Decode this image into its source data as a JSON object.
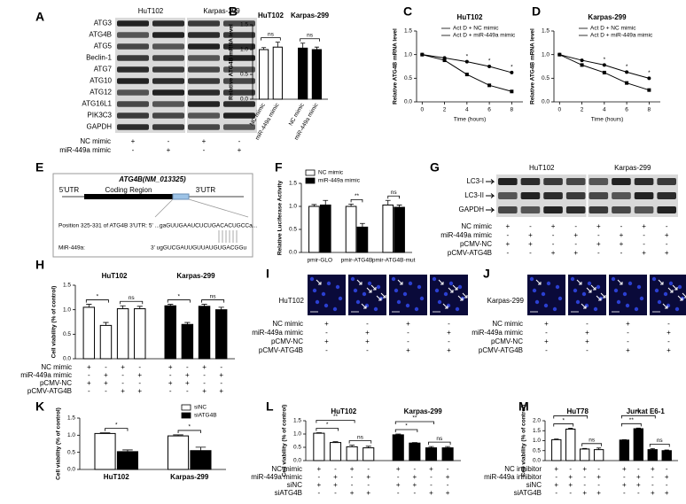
{
  "panel_labels": [
    "A",
    "B",
    "C",
    "D",
    "E",
    "F",
    "G",
    "H",
    "I",
    "J",
    "K",
    "L",
    "M"
  ],
  "blots": [
    {
      "cell_lines": [
        "HuT102",
        "Karpas-299"
      ],
      "proteins": [
        "ATG3",
        "ATG4B",
        "ATG5",
        "Beclin-1",
        "ATG7",
        "ATG10",
        "ATG12",
        "ATG16L1",
        "PIK3C3",
        "GAPDH"
      ],
      "conditions": [
        {
          "label": "NC mimic",
          "signs": [
            "+",
            "-",
            "+",
            "-"
          ]
        },
        {
          "label": "miR-449a mimic",
          "signs": [
            "-",
            "+",
            "-",
            "+"
          ]
        }
      ]
    },
    {
      "cell_lines": [
        "HuT102",
        "Karpas-299"
      ],
      "proteins": [
        "LC3-I",
        "LC3-II",
        "GAPDH"
      ],
      "conditions": [
        {
          "label": "NC mimic",
          "signs": [
            "+",
            "-",
            "+",
            "-",
            "+",
            "-",
            "+",
            "-"
          ]
        },
        {
          "label": "miR-449a mimic",
          "signs": [
            "-",
            "+",
            "-",
            "+",
            "-",
            "+",
            "-",
            "+"
          ]
        },
        {
          "label": "pCMV-NC",
          "signs": [
            "+",
            "+",
            "-",
            "-",
            "+",
            "+",
            "-",
            "-"
          ]
        },
        {
          "label": "pCMV-ATG4B",
          "signs": [
            "-",
            "-",
            "+",
            "+",
            "-",
            "-",
            "+",
            "+"
          ]
        }
      ]
    }
  ],
  "diagram": {
    "title": "ATG4B(NM_013325)",
    "regions": [
      "5'UTR",
      "Coding Region",
      "3'UTR"
    ],
    "site": "Position 325-331 of ATG4B 3'UTR: 5' ...gaGUUGAAUCUCUGACACUGCCa...",
    "mirna_label": "MiR-449a:",
    "mirna": "3'  ugGUCGAUUGUUAUGUGACGGu"
  },
  "images": [
    {
      "cell_line": "HuT102",
      "conditions": [
        {
          "label": "NC mimic",
          "signs": [
            "+",
            "-",
            "+",
            "-"
          ]
        },
        {
          "label": "miR-449a mimic",
          "signs": [
            "-",
            "+",
            "-",
            "+"
          ]
        },
        {
          "label": "pCMV-NC",
          "signs": [
            "+",
            "+",
            "-",
            "-"
          ]
        },
        {
          "label": "pCMV-ATG4B",
          "signs": [
            "-",
            "-",
            "+",
            "+"
          ]
        }
      ]
    },
    {
      "cell_line": "Karpas-299",
      "conditions": [
        {
          "label": "NC mimic",
          "signs": [
            "+",
            "-",
            "+",
            "-"
          ]
        },
        {
          "label": "miR-449a mimic",
          "signs": [
            "-",
            "+",
            "-",
            "+"
          ]
        },
        {
          "label": "pCMV-NC",
          "signs": [
            "+",
            "+",
            "-",
            "-"
          ]
        },
        {
          "label": "pCMV-ATG4B",
          "signs": [
            "-",
            "-",
            "+",
            "+"
          ]
        }
      ]
    }
  ],
  "chart_data": [
    {
      "type": "bar",
      "ylabel": "Relative ATG4B mRNA level",
      "ylim": [
        0,
        1.5
      ],
      "yticks": [
        {
          "value": 0,
          "label": "0.0"
        },
        {
          "value": 0.5,
          "label": "0.5"
        },
        {
          "value": 1,
          "label": "1.0"
        },
        {
          "value": 1.5,
          "label": "1.5"
        }
      ],
      "categories": [
        "NC mimic",
        "miR-449a mimic"
      ],
      "series": [
        {
          "name": "HuT102",
          "color": "#ffffff",
          "values": [
            1.0,
            1.05
          ],
          "errors": [
            0.04,
            0.1
          ],
          "significance": [
            "ns"
          ]
        },
        {
          "name": "Karpas-299",
          "color": "#000000",
          "values": [
            1.03,
            1.0
          ],
          "errors": [
            0.1,
            0.05
          ],
          "significance": [
            "ns"
          ]
        }
      ]
    },
    {
      "type": "line",
      "title": "HuT102",
      "ylabel": "Relative ATG4B mRNA level",
      "xlabel": "Time (hours)",
      "x": [
        0,
        2,
        4,
        6,
        8
      ],
      "xlim": [
        -0.5,
        9
      ],
      "xticks": [
        0,
        2,
        4,
        6,
        8
      ],
      "ylim": [
        0,
        1.5
      ],
      "yticks": [
        {
          "value": 0,
          "label": "0.0"
        },
        {
          "value": 0.5,
          "label": "0.5"
        },
        {
          "value": 1,
          "label": "1.0"
        },
        {
          "value": 1.5,
          "label": "1.5"
        }
      ],
      "legend": "upper right",
      "series": [
        {
          "name": "Act D + NC mimic",
          "color": "#000000",
          "values": [
            1.0,
            0.93,
            0.85,
            0.75,
            0.62
          ]
        },
        {
          "name": "Act D + miR-449a mimic",
          "color": "#000000",
          "values": [
            1.0,
            0.88,
            0.58,
            0.35,
            0.22
          ]
        }
      ],
      "significance": [
        null,
        null,
        "*",
        "*",
        "*"
      ]
    },
    {
      "type": "line",
      "title": "Karpas-299",
      "ylabel": "Relative ATG4B mRNA level",
      "xlabel": "Time (hours)",
      "x": [
        0,
        2,
        4,
        6,
        8
      ],
      "xlim": [
        -0.5,
        9
      ],
      "xticks": [
        0,
        2,
        4,
        6,
        8
      ],
      "ylim": [
        0,
        1.5
      ],
      "yticks": [
        {
          "value": 0,
          "label": "0.0"
        },
        {
          "value": 0.5,
          "label": "0.5"
        },
        {
          "value": 1,
          "label": "1.0"
        },
        {
          "value": 1.5,
          "label": "1.5"
        }
      ],
      "legend": "upper right",
      "series": [
        {
          "name": "Act D + NC mimic",
          "color": "#000000",
          "values": [
            1.0,
            0.88,
            0.78,
            0.63,
            0.5
          ]
        },
        {
          "name": "Act D + miR-449a mimic",
          "color": "#000000",
          "values": [
            1.0,
            0.78,
            0.62,
            0.4,
            0.25
          ]
        }
      ],
      "significance": [
        null,
        null,
        "*",
        "*",
        "*"
      ]
    },
    {
      "type": "bar",
      "ylabel": "Relative Luciferase Activity",
      "ylim": [
        0,
        1.5
      ],
      "yticks": [
        {
          "value": 0,
          "label": "0.0"
        },
        {
          "value": 0.5,
          "label": "0.5"
        },
        {
          "value": 1,
          "label": "1.0"
        },
        {
          "value": 1.5,
          "label": "1.5"
        }
      ],
      "legend": "upper left",
      "categories": [
        "pmir-GLO",
        "pmir-ATG4B",
        "pmir-ATG4B-mut"
      ],
      "series": [
        {
          "name": "NC mimic",
          "color": "#ffffff",
          "values": [
            1.0,
            1.0,
            1.03
          ],
          "errors": [
            0.04,
            0.05,
            0.1
          ]
        },
        {
          "name": "miR-449a mimic",
          "color": "#000000",
          "values": [
            1.03,
            0.55,
            0.98
          ],
          "errors": [
            0.1,
            0.08,
            0.05
          ]
        }
      ],
      "significance": [
        null,
        "**",
        "ns"
      ]
    },
    {
      "type": "bar",
      "ylabel": "Cell viability (% of control)",
      "ylim": [
        0,
        1.5
      ],
      "yticks": [
        {
          "value": 0,
          "label": "0.0"
        },
        {
          "value": 0.5,
          "label": "0.5"
        },
        {
          "value": 1,
          "label": "1.0"
        },
        {
          "value": 1.5,
          "label": "1.5"
        }
      ],
      "series": [
        {
          "name": "HuT102",
          "color": "#ffffff",
          "values": [
            1.05,
            0.68,
            1.02,
            1.02
          ],
          "errors": [
            0.06,
            0.06,
            0.06,
            0.05
          ],
          "significance": [
            "*",
            "ns"
          ]
        },
        {
          "name": "Karpas-299",
          "color": "#000000",
          "values": [
            1.08,
            0.7,
            1.07,
            1.0
          ],
          "errors": [
            0.03,
            0.04,
            0.04,
            0.05
          ],
          "significance": [
            "*",
            "ns"
          ]
        }
      ],
      "conditions": [
        {
          "label": "NC mimic",
          "signs": [
            "+",
            "-",
            "+",
            "-",
            "+",
            "-",
            "+",
            "-"
          ]
        },
        {
          "label": "miR-449a mimic",
          "signs": [
            "-",
            "+",
            "-",
            "+",
            "-",
            "+",
            "-",
            "+"
          ]
        },
        {
          "label": "pCMV-NC",
          "signs": [
            "+",
            "+",
            "-",
            "-",
            "+",
            "+",
            "-",
            "-"
          ]
        },
        {
          "label": "pCMV-ATG4B",
          "signs": [
            "-",
            "-",
            "+",
            "+",
            "-",
            "-",
            "+",
            "+"
          ]
        }
      ]
    },
    {
      "type": "bar",
      "ylabel": "Cell viability (% of control)",
      "ylim": [
        0,
        1.5
      ],
      "yticks": [
        {
          "value": 0,
          "label": "0.0"
        },
        {
          "value": 0.5,
          "label": "0.5"
        },
        {
          "value": 1,
          "label": "1.0"
        },
        {
          "value": 1.5,
          "label": "1.5"
        }
      ],
      "legend": "upper right",
      "categories": [
        "HuT102",
        "Karpas-299"
      ],
      "series": [
        {
          "name": "siNC",
          "color": "#ffffff",
          "values": [
            1.05,
            0.98
          ],
          "errors": [
            0.02,
            0.03
          ]
        },
        {
          "name": "siATG4B",
          "color": "#000000",
          "values": [
            0.52,
            0.55
          ],
          "errors": [
            0.05,
            0.1
          ]
        }
      ],
      "significance": [
        "*",
        "*"
      ]
    },
    {
      "type": "bar",
      "ylabel": "Cell viability (% of control)",
      "ylim": [
        0,
        1.5
      ],
      "yticks": [
        {
          "value": 0,
          "label": "0.0"
        },
        {
          "value": 0.5,
          "label": "0.5"
        },
        {
          "value": 1,
          "label": "1.0"
        },
        {
          "value": 1.5,
          "label": "1.5"
        }
      ],
      "series": [
        {
          "name": "HuT102",
          "color": "#ffffff",
          "values": [
            1.03,
            0.68,
            0.52,
            0.48
          ],
          "errors": [
            0.02,
            0.03,
            0.06,
            0.06
          ],
          "significance": [
            "*",
            "**",
            "ns"
          ]
        },
        {
          "name": "Karpas-299",
          "color": "#000000",
          "values": [
            0.97,
            0.66,
            0.48,
            0.48
          ],
          "errors": [
            0.03,
            0.02,
            0.05,
            0.05
          ],
          "significance": [
            "*",
            "**",
            "ns"
          ]
        }
      ],
      "conditions": [
        {
          "label": "NC mimic",
          "signs": [
            "+",
            "-",
            "+",
            "-",
            "+",
            "-",
            "+",
            "-"
          ]
        },
        {
          "label": "miR-449a mimic",
          "signs": [
            "-",
            "+",
            "-",
            "+",
            "-",
            "+",
            "-",
            "+"
          ]
        },
        {
          "label": "siNC",
          "signs": [
            "+",
            "+",
            "-",
            "-",
            "+",
            "+",
            "-",
            "-"
          ]
        },
        {
          "label": "siATG4B",
          "signs": [
            "-",
            "-",
            "+",
            "+",
            "-",
            "-",
            "+",
            "+"
          ]
        }
      ]
    },
    {
      "type": "bar",
      "ylabel": "Cell viability (% of control)",
      "ylim": [
        0,
        2
      ],
      "yticks": [
        {
          "value": 0,
          "label": "0.0"
        },
        {
          "value": 0.5,
          "label": "0.5"
        },
        {
          "value": 1,
          "label": "1.0"
        },
        {
          "value": 1.5,
          "label": "1.5"
        },
        {
          "value": 2,
          "label": "2.0"
        }
      ],
      "series": [
        {
          "name": "HuT78",
          "color": "#ffffff",
          "values": [
            1.05,
            1.58,
            0.58,
            0.55
          ],
          "errors": [
            0.03,
            0.04,
            0.03,
            0.08
          ],
          "significance": [
            "*",
            "*",
            "ns"
          ]
        },
        {
          "name": "Jurkat E6-1",
          "color": "#000000",
          "values": [
            1.03,
            1.6,
            0.55,
            0.5
          ],
          "errors": [
            0.02,
            0.03,
            0.05,
            0.03
          ],
          "significance": [
            "**",
            "**",
            "ns"
          ]
        }
      ],
      "conditions": [
        {
          "label": "NC inhibitor",
          "signs": [
            "+",
            "-",
            "+",
            "-",
            "+",
            "-",
            "+",
            "-"
          ]
        },
        {
          "label": "miR-449a inhibitor",
          "signs": [
            "-",
            "+",
            "-",
            "+",
            "-",
            "+",
            "-",
            "+"
          ]
        },
        {
          "label": "siNC",
          "signs": [
            "+",
            "+",
            "-",
            "-",
            "+",
            "+",
            "-",
            "-"
          ]
        },
        {
          "label": "siATG4B",
          "signs": [
            "-",
            "-",
            "+",
            "+",
            "-",
            "-",
            "+",
            "+"
          ]
        }
      ]
    }
  ]
}
